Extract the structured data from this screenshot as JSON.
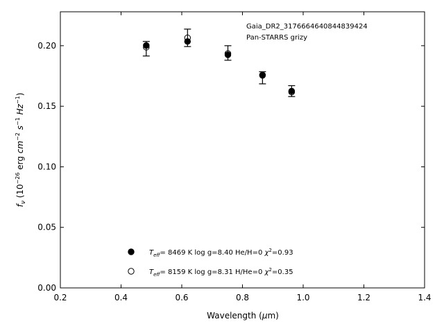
{
  "chart_data": {
    "type": "scatter",
    "title": "",
    "annotations": [
      "Gaia_DR2_3176664640844839424",
      "Pan-STARRS grizy"
    ],
    "xlabel": "Wavelength (μm)",
    "ylabel": "fν (10⁻²⁶ erg cm⁻² s⁻¹ Hz⁻¹)",
    "xlim": [
      0.2,
      1.4
    ],
    "ylim": [
      0.0,
      0.228
    ],
    "xticks": [
      "0.2",
      "0.4",
      "0.6",
      "0.8",
      "1.0",
      "1.2",
      "1.4"
    ],
    "yticks": [
      "0.00",
      "0.05",
      "0.10",
      "0.15",
      "0.20"
    ],
    "grid": false,
    "legend_position": "lower-center",
    "observed": {
      "x": [
        0.483,
        0.619,
        0.752,
        0.866,
        0.962
      ],
      "y": [
        0.1975,
        0.2065,
        0.194,
        0.1735,
        0.1625
      ],
      "yerr": [
        0.006,
        0.0072,
        0.006,
        0.005,
        0.0045
      ]
    },
    "series": [
      {
        "name": "Teff=  8469 K  log g=8.40  He/H=0  χ²=0.93",
        "marker": "filled",
        "x": [
          0.483,
          0.619,
          0.752,
          0.866,
          0.962
        ],
        "y": [
          0.2002,
          0.2035,
          0.1925,
          0.1758,
          0.1625
        ]
      },
      {
        "name": "Teff=  8159 K  log g=8.31  H/He=0  χ²=0.35",
        "marker": "open",
        "x": [
          0.483,
          0.619,
          0.752,
          0.866,
          0.962
        ],
        "y": [
          0.1988,
          0.2065,
          0.1935,
          0.1755,
          0.1617
        ]
      }
    ],
    "legend": [
      {
        "marker": "filled",
        "teff": "8469",
        "logg": "8.40",
        "comp": "He/H=0",
        "chi2": "0.93"
      },
      {
        "marker": "open",
        "teff": "8159",
        "logg": "8.31",
        "comp": "H/He=0",
        "chi2": "0.35"
      }
    ]
  }
}
